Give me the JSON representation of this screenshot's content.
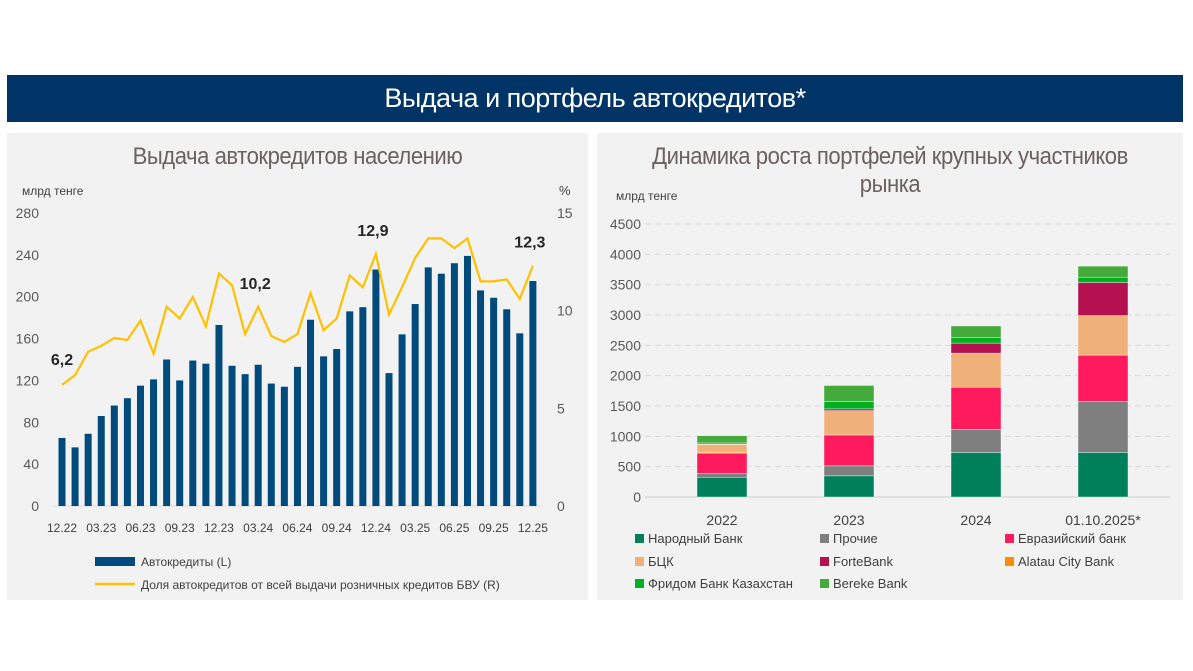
{
  "header": {
    "title": "Выдача и портфель автокредитов*"
  },
  "chart_data": [
    {
      "type": "bar+line",
      "title": "Выдача автокредитов населению",
      "ylabel_left": "млрд тенге",
      "ylabel_right": "%",
      "ylim_left": [
        0,
        280
      ],
      "yticks_left": [
        0,
        40,
        80,
        120,
        160,
        200,
        240,
        280
      ],
      "ylim_right": [
        0,
        15
      ],
      "yticks_right": [
        0,
        5,
        10,
        15
      ],
      "x_tick_labels": [
        "12.22",
        "03.23",
        "06.23",
        "09.23",
        "12.23",
        "03.24",
        "06.24",
        "09.24",
        "12.24",
        "03.25",
        "06.25",
        "09.25",
        "12.25"
      ],
      "months": 37,
      "series": [
        {
          "name": "Автокредиты (L)",
          "kind": "bar",
          "axis": "left",
          "color": "#004a7c",
          "values": [
            65,
            56,
            69,
            86,
            96,
            103,
            115,
            121,
            140,
            120,
            139,
            136,
            173,
            134,
            126,
            135,
            117,
            114,
            133,
            178,
            143,
            150,
            186,
            190,
            226,
            127,
            164,
            193,
            228,
            222,
            232,
            239,
            206,
            199,
            188,
            165,
            215
          ]
        },
        {
          "name": "Доля автокредитов от всей выдачи розничных кредитов БВУ (R)",
          "kind": "line",
          "axis": "right",
          "color": "#ffc000",
          "values": [
            6.2,
            6.7,
            7.9,
            8.2,
            8.6,
            8.5,
            9.5,
            7.8,
            10.2,
            9.6,
            10.7,
            9.2,
            11.9,
            11.3,
            8.8,
            10.2,
            8.7,
            8.4,
            8.8,
            10.9,
            9.0,
            9.6,
            11.8,
            11.2,
            12.9,
            9.8,
            11.2,
            12.7,
            13.7,
            13.7,
            13.2,
            13.7,
            11.5,
            11.5,
            11.6,
            10.6,
            12.3
          ]
        }
      ],
      "annotations": [
        {
          "index": 0,
          "text": "6,2"
        },
        {
          "index": 15,
          "text": "10,2"
        },
        {
          "index": 24,
          "text": "12,9"
        },
        {
          "index": 36,
          "text": "12,3"
        }
      ]
    },
    {
      "type": "stacked-bar",
      "title": "Динамика роста портфелей крупных участников рынка",
      "ylabel": "млрд тенге",
      "ylim": [
        0,
        4500
      ],
      "yticks": [
        0,
        500,
        1000,
        1500,
        2000,
        2500,
        3000,
        3500,
        4000,
        4500
      ],
      "grid": true,
      "categories": [
        "2022",
        "2023",
        "2024",
        "01.10.2025*"
      ],
      "series": [
        {
          "name": "Народный Банк",
          "color": "#00805a",
          "values": [
            326,
            348,
            734,
            734
          ]
        },
        {
          "name": "Прочие",
          "color": "#7f7f7f",
          "values": [
            66,
            165,
            380,
            844
          ]
        },
        {
          "name": "Евразийский банк",
          "color": "#ff1a5e",
          "values": [
            332,
            509,
            695,
            761
          ]
        },
        {
          "name": "Alatau City Bank",
          "color": "#ff8c00",
          "values": [
            16,
            0,
            0,
            0
          ]
        },
        {
          "name": "БЦК",
          "color": "#f0b07a",
          "values": [
            126,
            402,
            563,
            651
          ]
        },
        {
          "name": "ForteBank",
          "color": "#b5104f",
          "values": [
            5,
            28,
            165,
            546
          ]
        },
        {
          "name": "Фридом Банк Казахстан",
          "color": "#00b020",
          "values": [
            20,
            121,
            94,
            88
          ]
        },
        {
          "name": "Bereke Bank",
          "color": "#44aa3c",
          "values": [
            120,
            265,
            188,
            182
          ]
        }
      ],
      "legend_order": [
        "Народный Банк",
        "Прочие",
        "Евразийский банк",
        "БЦК",
        "ForteBank",
        "Alatau City Bank",
        "Фридом Банк Казахстан",
        "Bereke Bank"
      ],
      "legend": "bottom"
    }
  ]
}
